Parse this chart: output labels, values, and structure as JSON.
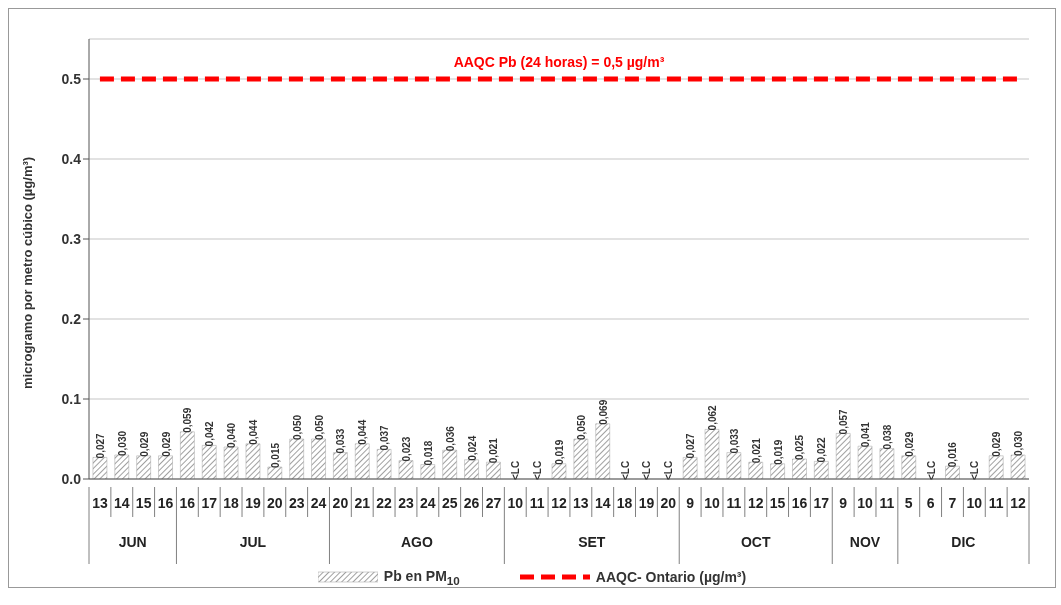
{
  "chart_data": {
    "type": "bar",
    "ylabel": "microgramo por metro cúbico (µg/m³)",
    "categories": [
      "13",
      "14",
      "15",
      "16",
      "16",
      "17",
      "18",
      "19",
      "20",
      "23",
      "24",
      "20",
      "21",
      "22",
      "23",
      "24",
      "25",
      "26",
      "27",
      "10",
      "11",
      "12",
      "13",
      "14",
      "18",
      "19",
      "20",
      "9",
      "10",
      "11",
      "12",
      "15",
      "16",
      "17",
      "9",
      "10",
      "11",
      "5",
      "6",
      "7",
      "10",
      "11",
      "12"
    ],
    "annotations": [
      "AAQC Pb (24 horas) = 0,5 µg/m³",
      "JUN",
      "JUL",
      "AGO",
      "SET",
      "OCT",
      "NOV",
      "DIC"
    ],
    "series": [
      {
        "name": "Pb en PM$_{10}$",
        "color": "#a0a0a0",
        "values": [
          0.027,
          0.03,
          0.029,
          0.029,
          0.059,
          0.042,
          0.04,
          0.044,
          0.015,
          0.05,
          0.05,
          0.033,
          0.044,
          0.037,
          0.023,
          0.018,
          0.036,
          0.024,
          0.021,
          null,
          null,
          0.019,
          0.05,
          0.069,
          null,
          null,
          null,
          0.027,
          0.062,
          0.033,
          0.021,
          0.019,
          0.025,
          0.022,
          0.057,
          0.041,
          0.038,
          0.029,
          null,
          0.016,
          null,
          0.029,
          0.03
        ],
        "value_labels": [
          "0,027",
          "0,030",
          "0,029",
          "0,029",
          "0,059",
          "0,042",
          "0,040",
          "0,044",
          "0,015",
          "0,050",
          "0,050",
          "0,033",
          "0,044",
          "0,037",
          "0,023",
          "0,018",
          "0,036",
          "0,024",
          "0,021",
          "<LC",
          "<LC",
          "0,019",
          "0,050",
          "0,069",
          "<LC",
          "<LC",
          "<LC",
          "0,027",
          "0,062",
          "0,033",
          "0,021",
          "0,019",
          "0,025",
          "0,022",
          "0,057",
          "0,041",
          "0,038",
          "0,029",
          "<LC",
          "0,016",
          "<LC",
          "0,029",
          "0,030"
        ]
      },
      {
        "name": "AAQC- Ontario (µg/m³)",
        "type": "line",
        "color": "#ff0000",
        "line_style": "dashed",
        "values": [
          0.5,
          0.5,
          0.5,
          0.5,
          0.5,
          0.5,
          0.5,
          0.5,
          0.5,
          0.5,
          0.5,
          0.5,
          0.5,
          0.5,
          0.5,
          0.5,
          0.5,
          0.5,
          0.5,
          0.5,
          0.5,
          0.5,
          0.5,
          0.5,
          0.5,
          0.5,
          0.5,
          0.5,
          0.5,
          0.5,
          0.5,
          0.5,
          0.5,
          0.5,
          0.5,
          0.5,
          0.5,
          0.5,
          0.5,
          0.5,
          0.5,
          0.5,
          0.5
        ]
      }
    ],
    "ylim": [
      0,
      0.55
    ],
    "yticks": [
      {
        "value": 0,
        "label": "0.0"
      },
      0.1,
      0.2,
      0.3,
      0.4,
      0.5
    ],
    "grid": "y",
    "legend": "bottom",
    "marker": "none"
  }
}
